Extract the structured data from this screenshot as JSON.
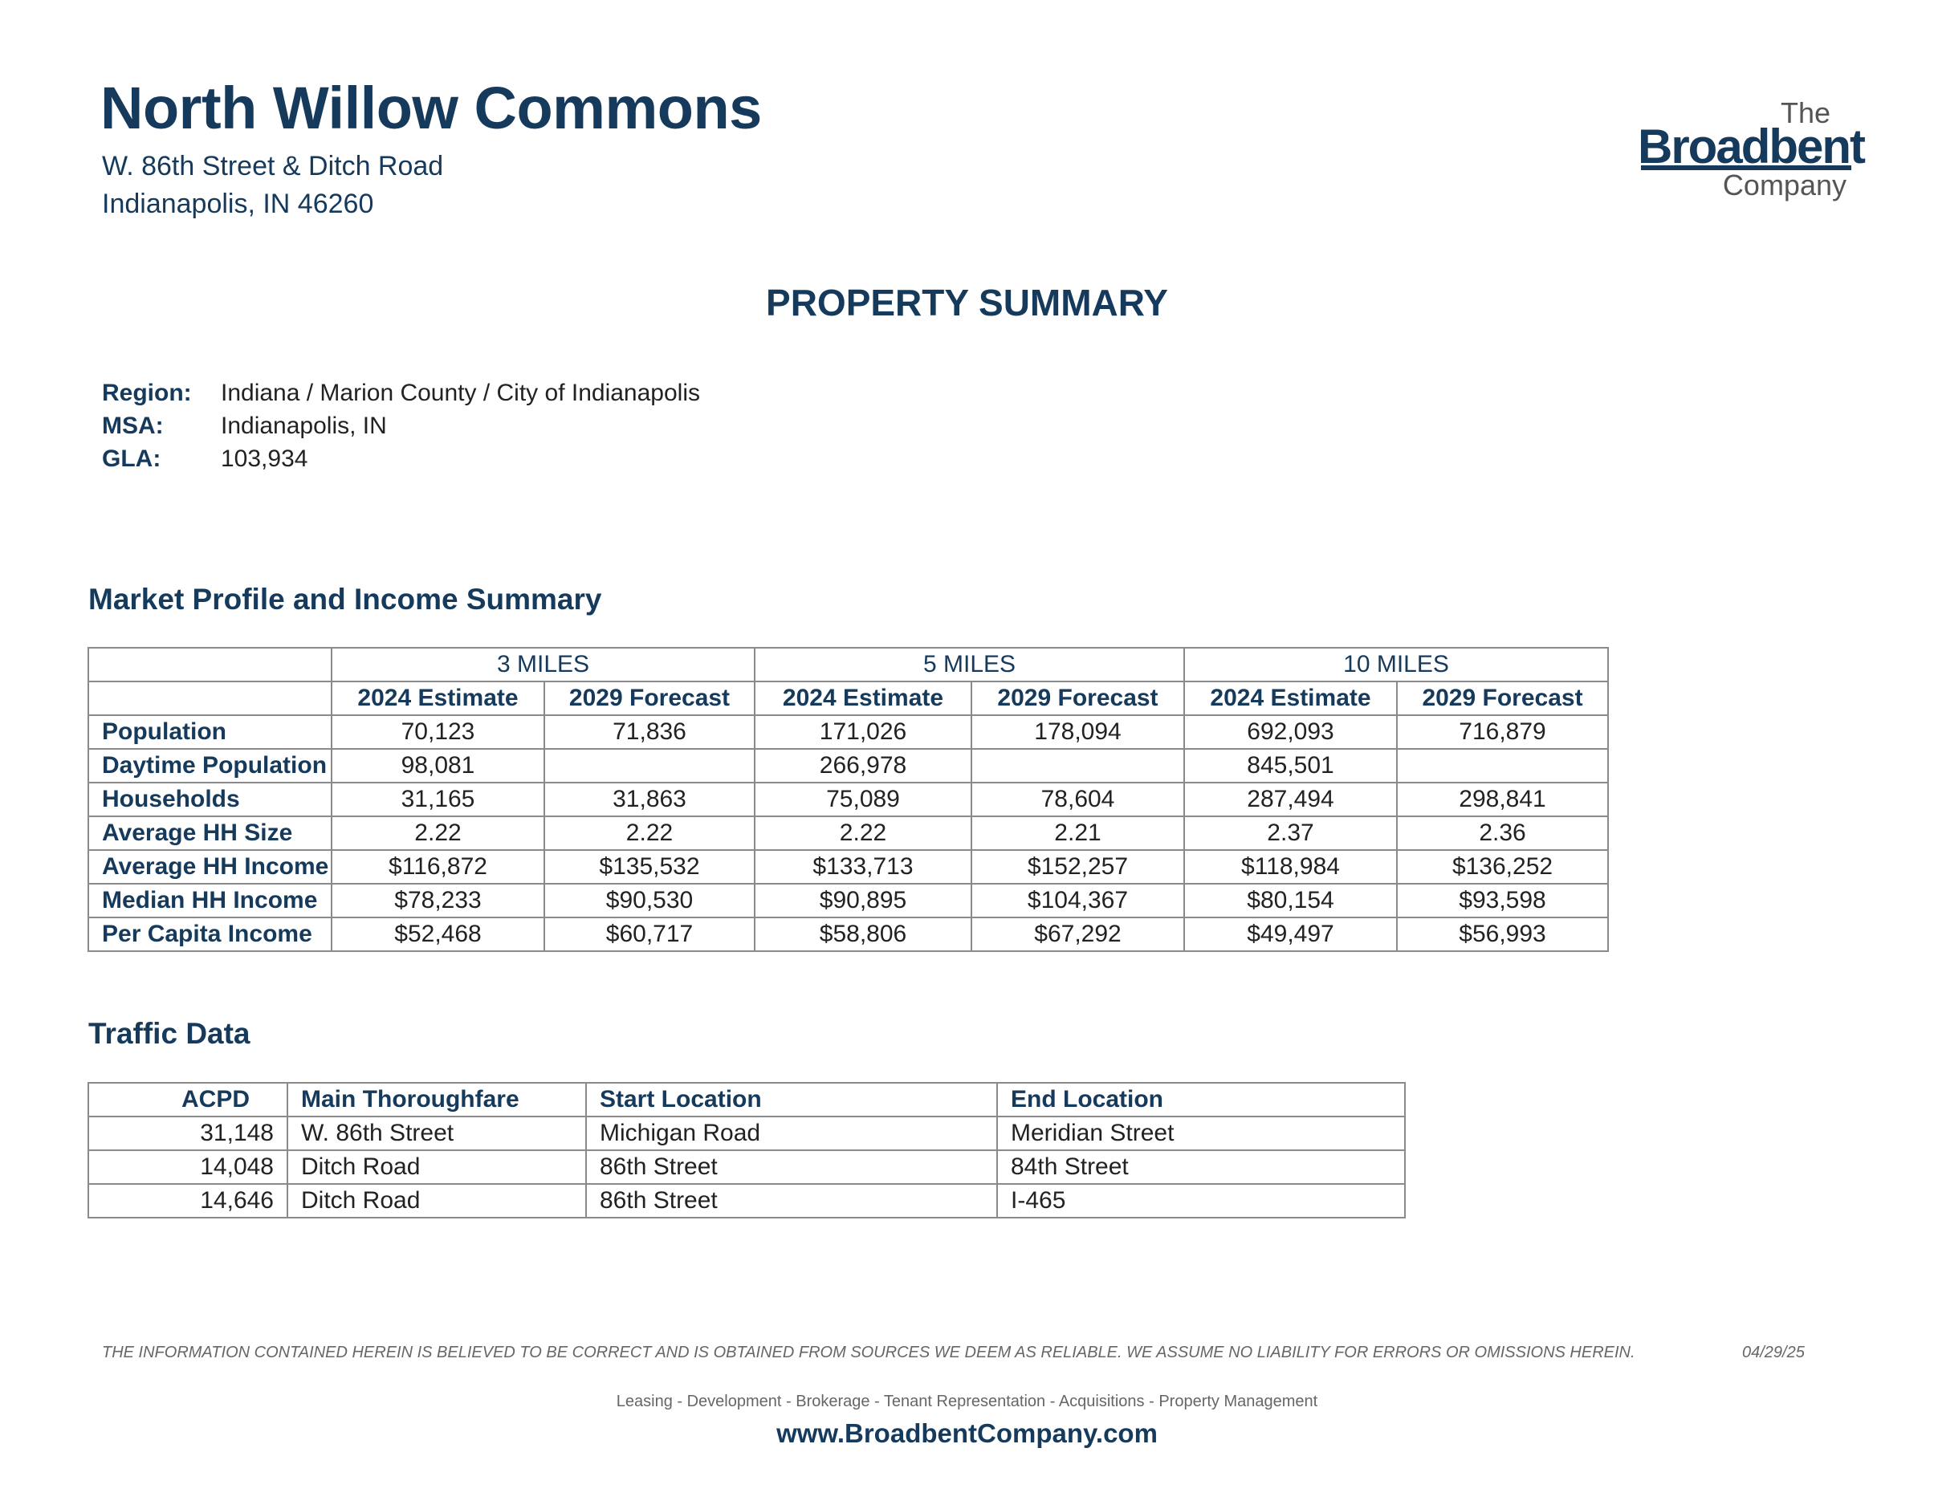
{
  "header": {
    "title": "North Willow Commons",
    "address_line1": "W. 86th Street & Ditch Road",
    "address_line2": "Indianapolis, IN  46260"
  },
  "logo": {
    "line1": "The",
    "line2": "Broadbent",
    "line3": "Company"
  },
  "summary_heading": "PROPERTY SUMMARY",
  "info": [
    {
      "label": "Region:",
      "value": "Indiana / Marion County / City of Indianapolis"
    },
    {
      "label": "MSA:",
      "value": "Indianapolis, IN"
    },
    {
      "label": "GLA:",
      "value": "103,934"
    }
  ],
  "market": {
    "heading": "Market Profile and Income Summary",
    "groups": [
      "3 MILES",
      "5 MILES",
      "10 MILES"
    ],
    "subheaders": [
      "2024 Estimate",
      "2029 Forecast",
      "2024 Estimate",
      "2029 Forecast",
      "2024 Estimate",
      "2029 Forecast"
    ],
    "rows": [
      {
        "label": "Population",
        "values": [
          "70,123",
          "71,836",
          "171,026",
          "178,094",
          "692,093",
          "716,879"
        ]
      },
      {
        "label": "Daytime Population",
        "values": [
          "98,081",
          "",
          "266,978",
          "",
          "845,501",
          ""
        ]
      },
      {
        "label": "Households",
        "values": [
          "31,165",
          "31,863",
          "75,089",
          "78,604",
          "287,494",
          "298,841"
        ]
      },
      {
        "label": "Average HH Size",
        "values": [
          "2.22",
          "2.22",
          "2.22",
          "2.21",
          "2.37",
          "2.36"
        ]
      },
      {
        "label": "Average HH Income",
        "values": [
          "$116,872",
          "$135,532",
          "$133,713",
          "$152,257",
          "$118,984",
          "$136,252"
        ]
      },
      {
        "label": "Median HH Income",
        "values": [
          "$78,233",
          "$90,530",
          "$90,895",
          "$104,367",
          "$80,154",
          "$93,598"
        ]
      },
      {
        "label": "Per Capita Income",
        "values": [
          "$52,468",
          "$60,717",
          "$58,806",
          "$67,292",
          "$49,497",
          "$56,993"
        ]
      }
    ]
  },
  "traffic": {
    "heading": "Traffic Data",
    "columns": [
      "ACPD",
      "Main Thoroughfare",
      "Start Location",
      "End Location"
    ],
    "rows": [
      [
        "31,148",
        "W. 86th Street",
        "Michigan Road",
        "Meridian Street"
      ],
      [
        "14,048",
        "Ditch Road",
        "86th Street",
        "84th Street"
      ],
      [
        "14,646",
        "Ditch Road",
        "86th Street",
        "I-465"
      ]
    ]
  },
  "footer": {
    "disclaimer": "THE INFORMATION CONTAINED HEREIN IS BELIEVED TO BE CORRECT AND IS OBTAINED FROM SOURCES WE DEEM AS RELIABLE.  WE ASSUME NO LIABILITY FOR ERRORS OR OMISSIONS HEREIN.",
    "date": "04/29/25",
    "services": "Leasing  -  Development  -  Brokerage  -  Tenant Representation  -  Acquisitions  -  Property Management",
    "website": "www.BroadbentCompany.com"
  }
}
